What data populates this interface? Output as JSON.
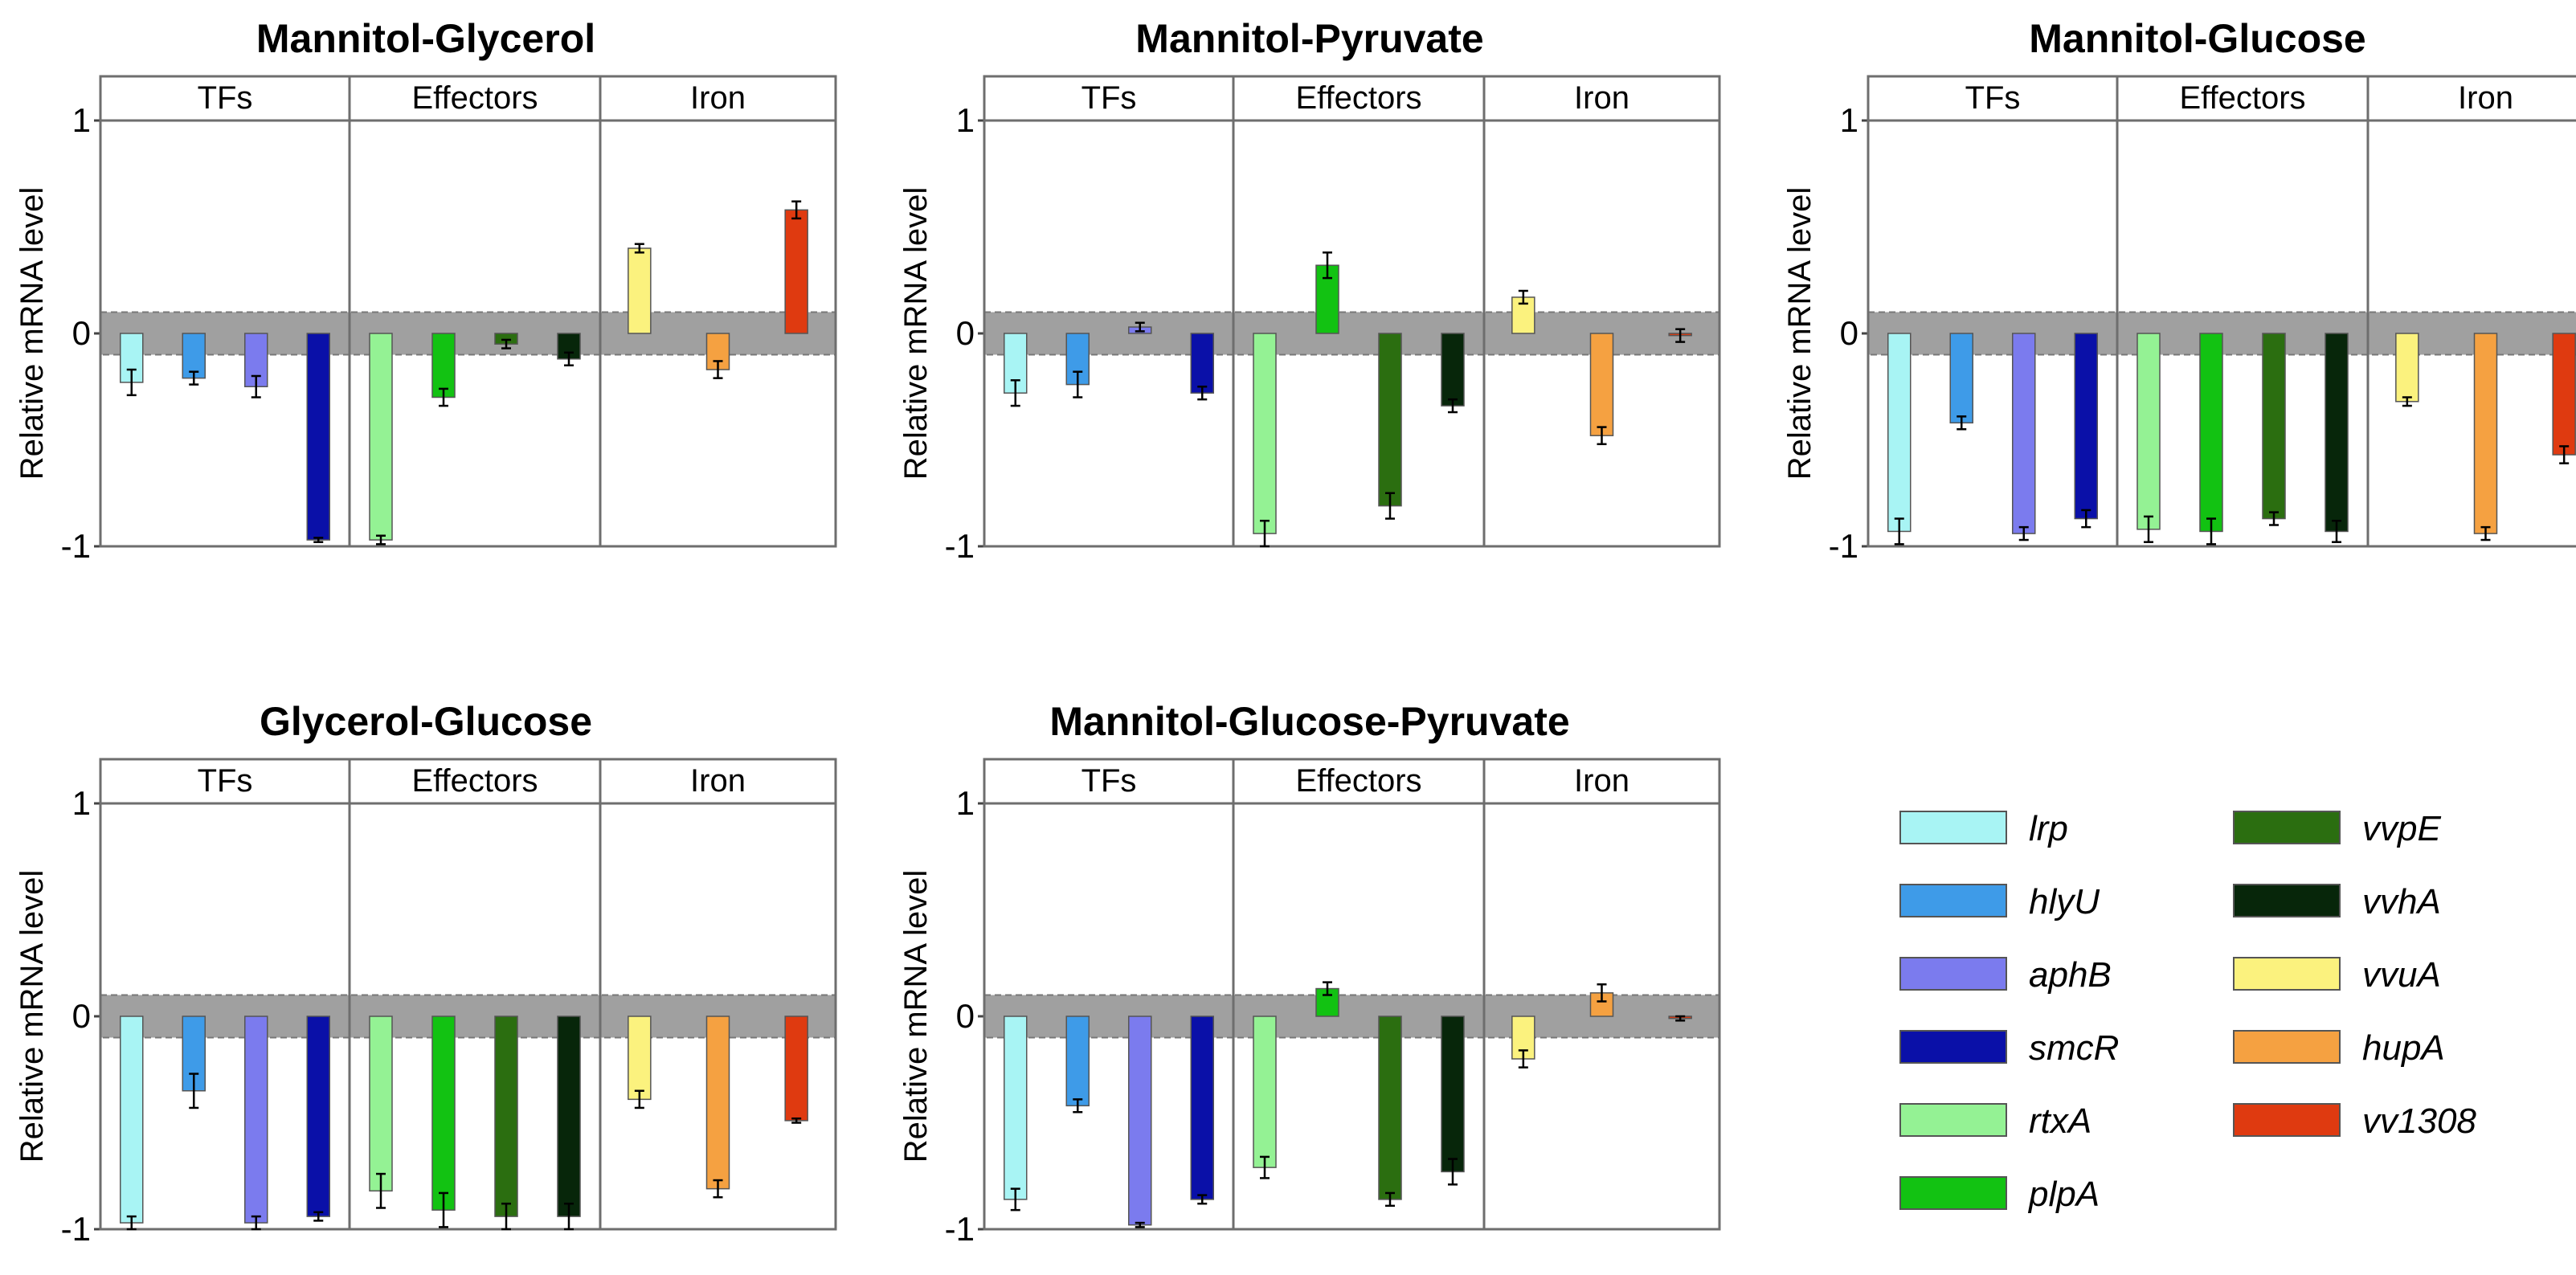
{
  "chart_data": [
    {
      "type": "bar",
      "title": "Mannitol-Glycerol",
      "ylabel": "Relative mRNA level",
      "ylim": [
        -1,
        1
      ],
      "yticks": [
        "1",
        "0",
        "-1"
      ],
      "threshold_band": [
        -0.1,
        0.1
      ],
      "groups": [
        {
          "label": "TFs",
          "series": [
            {
              "gene": "lrp",
              "value": -0.23,
              "error": 0.06
            },
            {
              "gene": "hlyU",
              "value": -0.21,
              "error": 0.03
            },
            {
              "gene": "aphB",
              "value": -0.25,
              "error": 0.05
            },
            {
              "gene": "smcR",
              "value": -0.97,
              "error": 0.01
            }
          ]
        },
        {
          "label": "Effectors",
          "series": [
            {
              "gene": "rtxA",
              "value": -0.97,
              "error": 0.02
            },
            {
              "gene": "plpA",
              "value": -0.3,
              "error": 0.04
            },
            {
              "gene": "vvpE",
              "value": -0.05,
              "error": 0.02
            },
            {
              "gene": "vvhA",
              "value": -0.12,
              "error": 0.03
            }
          ]
        },
        {
          "label": "Iron",
          "series": [
            {
              "gene": "vvuA",
              "value": 0.4,
              "error": 0.02
            },
            {
              "gene": "hupA",
              "value": -0.17,
              "error": 0.04
            },
            {
              "gene": "vv1308",
              "value": 0.58,
              "error": 0.04
            }
          ]
        }
      ]
    },
    {
      "type": "bar",
      "title": "Mannitol-Pyruvate",
      "ylabel": "Relative mRNA level",
      "ylim": [
        -1,
        1
      ],
      "yticks": [
        "1",
        "0",
        "-1"
      ],
      "threshold_band": [
        -0.1,
        0.1
      ],
      "groups": [
        {
          "label": "TFs",
          "series": [
            {
              "gene": "lrp",
              "value": -0.28,
              "error": 0.06
            },
            {
              "gene": "hlyU",
              "value": -0.24,
              "error": 0.06
            },
            {
              "gene": "aphB",
              "value": 0.03,
              "error": 0.02
            },
            {
              "gene": "smcR",
              "value": -0.28,
              "error": 0.03
            }
          ]
        },
        {
          "label": "Effectors",
          "series": [
            {
              "gene": "rtxA",
              "value": -0.94,
              "error": 0.06
            },
            {
              "gene": "plpA",
              "value": 0.32,
              "error": 0.06
            },
            {
              "gene": "vvpE",
              "value": -0.81,
              "error": 0.06
            },
            {
              "gene": "vvhA",
              "value": -0.34,
              "error": 0.03
            }
          ]
        },
        {
          "label": "Iron",
          "series": [
            {
              "gene": "vvuA",
              "value": 0.17,
              "error": 0.03
            },
            {
              "gene": "hupA",
              "value": -0.48,
              "error": 0.04
            },
            {
              "gene": "vv1308",
              "value": -0.01,
              "error": 0.03
            }
          ]
        }
      ]
    },
    {
      "type": "bar",
      "title": "Mannitol-Glucose",
      "ylabel": "Relative mRNA level",
      "ylim": [
        -1,
        1
      ],
      "yticks": [
        "1",
        "0",
        "-1"
      ],
      "threshold_band": [
        -0.1,
        0.1
      ],
      "groups": [
        {
          "label": "TFs",
          "series": [
            {
              "gene": "lrp",
              "value": -0.93,
              "error": 0.06
            },
            {
              "gene": "hlyU",
              "value": -0.42,
              "error": 0.03
            },
            {
              "gene": "aphB",
              "value": -0.94,
              "error": 0.03
            },
            {
              "gene": "smcR",
              "value": -0.87,
              "error": 0.04
            }
          ]
        },
        {
          "label": "Effectors",
          "series": [
            {
              "gene": "rtxA",
              "value": -0.92,
              "error": 0.06
            },
            {
              "gene": "plpA",
              "value": -0.93,
              "error": 0.06
            },
            {
              "gene": "vvpE",
              "value": -0.87,
              "error": 0.03
            },
            {
              "gene": "vvhA",
              "value": -0.93,
              "error": 0.05
            }
          ]
        },
        {
          "label": "Iron",
          "series": [
            {
              "gene": "vvuA",
              "value": -0.32,
              "error": 0.02
            },
            {
              "gene": "hupA",
              "value": -0.94,
              "error": 0.03
            },
            {
              "gene": "vv1308",
              "value": -0.57,
              "error": 0.04
            }
          ]
        }
      ]
    },
    {
      "type": "bar",
      "title": "Glycerol-Glucose",
      "ylabel": "Relative mRNA level",
      "ylim": [
        -1,
        1
      ],
      "yticks": [
        "1",
        "0",
        "-1"
      ],
      "threshold_band": [
        -0.1,
        0.1
      ],
      "groups": [
        {
          "label": "TFs",
          "series": [
            {
              "gene": "lrp",
              "value": -0.97,
              "error": 0.03
            },
            {
              "gene": "hlyU",
              "value": -0.35,
              "error": 0.08
            },
            {
              "gene": "aphB",
              "value": -0.97,
              "error": 0.03
            },
            {
              "gene": "smcR",
              "value": -0.94,
              "error": 0.02
            }
          ]
        },
        {
          "label": "Effectors",
          "series": [
            {
              "gene": "rtxA",
              "value": -0.82,
              "error": 0.08
            },
            {
              "gene": "plpA",
              "value": -0.91,
              "error": 0.08
            },
            {
              "gene": "vvpE",
              "value": -0.94,
              "error": 0.06
            },
            {
              "gene": "vvhA",
              "value": -0.94,
              "error": 0.06
            }
          ]
        },
        {
          "label": "Iron",
          "series": [
            {
              "gene": "vvuA",
              "value": -0.39,
              "error": 0.04
            },
            {
              "gene": "hupA",
              "value": -0.81,
              "error": 0.04
            },
            {
              "gene": "vv1308",
              "value": -0.49,
              "error": 0.01
            }
          ]
        }
      ]
    },
    {
      "type": "bar",
      "title": "Mannitol-Glucose-Pyruvate",
      "ylabel": "Relative mRNA level",
      "ylim": [
        -1,
        1
      ],
      "yticks": [
        "1",
        "0",
        "-1"
      ],
      "threshold_band": [
        -0.1,
        0.1
      ],
      "groups": [
        {
          "label": "TFs",
          "series": [
            {
              "gene": "lrp",
              "value": -0.86,
              "error": 0.05
            },
            {
              "gene": "hlyU",
              "value": -0.42,
              "error": 0.03
            },
            {
              "gene": "aphB",
              "value": -0.98,
              "error": 0.01
            },
            {
              "gene": "smcR",
              "value": -0.86,
              "error": 0.02
            }
          ]
        },
        {
          "label": "Effectors",
          "series": [
            {
              "gene": "rtxA",
              "value": -0.71,
              "error": 0.05
            },
            {
              "gene": "plpA",
              "value": 0.13,
              "error": 0.03
            },
            {
              "gene": "vvpE",
              "value": -0.86,
              "error": 0.03
            },
            {
              "gene": "vvhA",
              "value": -0.73,
              "error": 0.06
            }
          ]
        },
        {
          "label": "Iron",
          "series": [
            {
              "gene": "vvuA",
              "value": -0.2,
              "error": 0.04
            },
            {
              "gene": "hupA",
              "value": 0.11,
              "error": 0.04
            },
            {
              "gene": "vv1308",
              "value": -0.01,
              "error": 0.01
            }
          ]
        }
      ]
    }
  ],
  "legend": [
    {
      "gene": "lrp",
      "color": "#A8F4F4"
    },
    {
      "gene": "hlyU",
      "color": "#3E9BE8"
    },
    {
      "gene": "aphB",
      "color": "#7B7BEE"
    },
    {
      "gene": "smcR",
      "color": "#0A10A8"
    },
    {
      "gene": "rtxA",
      "color": "#94F294"
    },
    {
      "gene": "plpA",
      "color": "#12C212"
    },
    {
      "gene": "vvpE",
      "color": "#2B6E10"
    },
    {
      "gene": "vvhA",
      "color": "#07260A"
    },
    {
      "gene": "vvuA",
      "color": "#FBF27E"
    },
    {
      "gene": "hupA",
      "color": "#F5A141"
    },
    {
      "gene": "vv1308",
      "color": "#DF3A10"
    }
  ],
  "colors": {
    "band": "#A0A0A0",
    "frame": "#6E6E6E",
    "error_bar": "#000000"
  }
}
